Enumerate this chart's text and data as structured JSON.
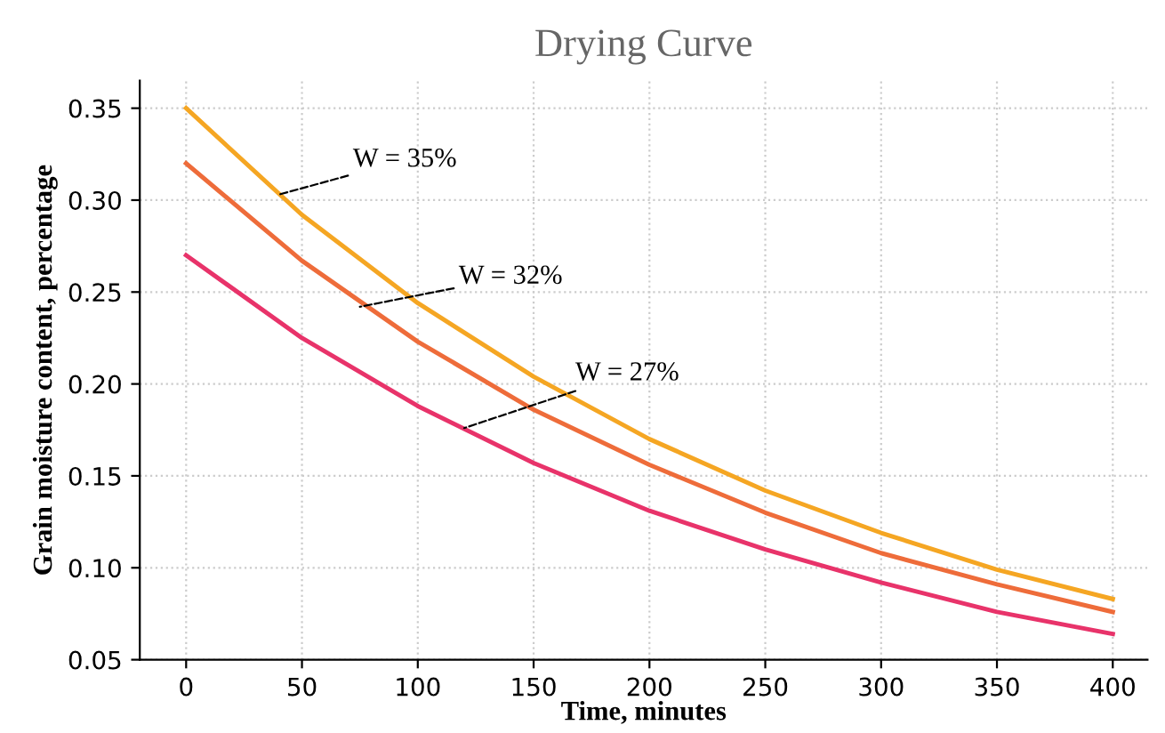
{
  "chart_data": {
    "type": "line",
    "title": "Drying Curve",
    "xlabel": "Time, minutes",
    "ylabel": "Grain moisture content, percentage",
    "x": [
      0,
      50,
      100,
      150,
      200,
      250,
      300,
      350,
      400
    ],
    "series": [
      {
        "color": "#f5a623",
        "values": [
          0.35,
          0.292,
          0.244,
          0.204,
          0.17,
          0.142,
          0.119,
          0.099,
          0.083
        ]
      },
      {
        "color": "#ee6c3a",
        "values": [
          0.32,
          0.267,
          0.223,
          0.186,
          0.156,
          0.13,
          0.108,
          0.091,
          0.076
        ]
      },
      {
        "color": "#e8336a",
        "values": [
          0.27,
          0.225,
          0.188,
          0.157,
          0.131,
          0.11,
          0.092,
          0.076,
          0.064
        ]
      }
    ],
    "annotations": [
      {
        "text": "W = 35%",
        "x": 40,
        "y": 0.303
      },
      {
        "text": "W = 32%",
        "x": 75,
        "y": 0.242
      },
      {
        "text": "W = 27%",
        "x": 120,
        "y": 0.176
      }
    ],
    "xlim": [
      -20,
      415
    ],
    "ylim": [
      0.05,
      0.365
    ],
    "xticks": [
      0,
      50,
      100,
      150,
      200,
      250,
      300,
      350,
      400
    ],
    "yticks": [
      {
        "value": 0.05,
        "label": "0.05"
      },
      {
        "value": 0.1,
        "label": "0.10"
      },
      {
        "value": 0.15,
        "label": "0.15"
      },
      {
        "value": 0.2,
        "label": "0.20"
      },
      {
        "value": 0.25,
        "label": "0.25"
      },
      {
        "value": 0.3,
        "label": "0.30"
      },
      {
        "value": 0.35,
        "label": "0.35"
      }
    ],
    "grid": true,
    "marker": "none",
    "line_style": "solid",
    "legend": false
  }
}
